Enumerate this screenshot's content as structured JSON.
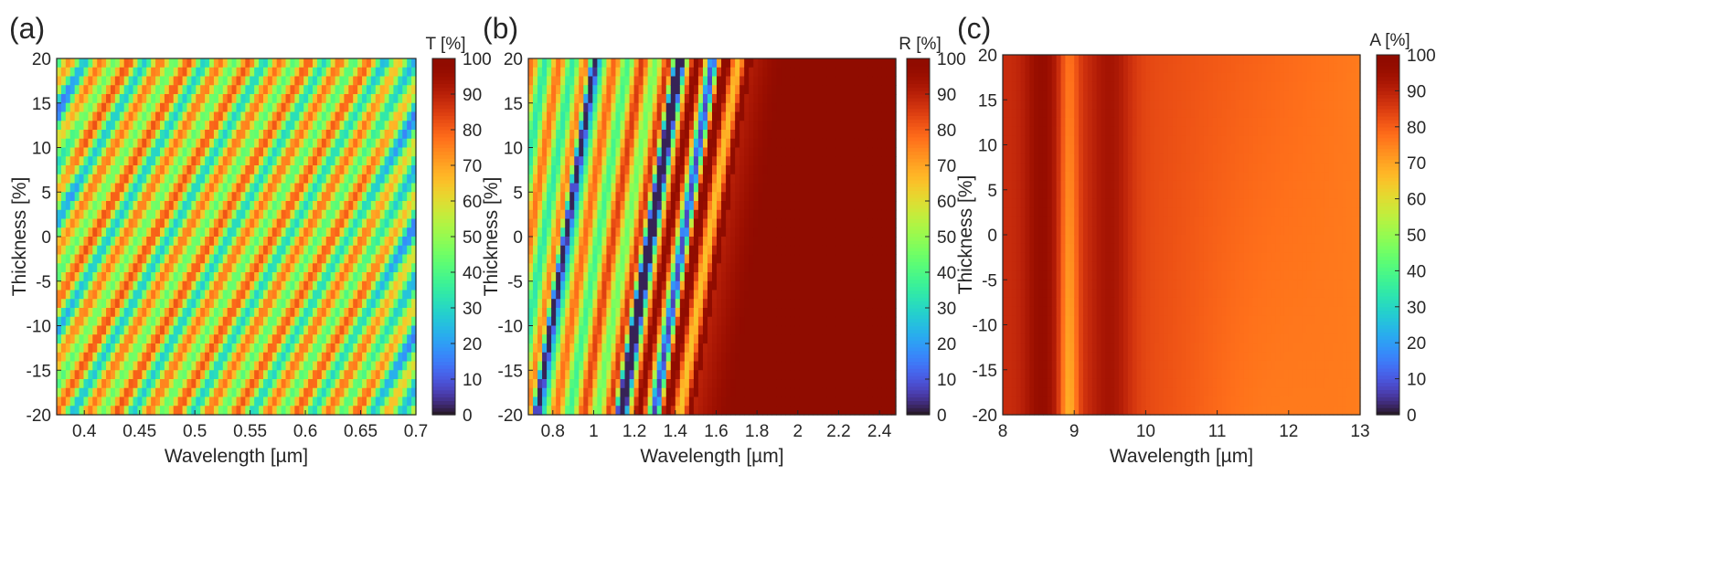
{
  "chart_data": [
    {
      "type": "heatmap",
      "panel_label": "(a)",
      "xlabel": "Wavelength [µm]",
      "ylabel": "Thickness [%]",
      "xlim": [
        0.375,
        0.7
      ],
      "ylim": [
        -20,
        20
      ],
      "xticks": [
        0.4,
        0.45,
        0.5,
        0.55,
        0.6,
        0.65,
        0.7
      ],
      "yticks": [
        -20,
        -15,
        -10,
        -5,
        0,
        5,
        10,
        15,
        20
      ],
      "colorbar": {
        "label": "T [%]",
        "range": [
          0,
          100
        ],
        "ticks": [
          0,
          10,
          20,
          30,
          40,
          50,
          60,
          70,
          80,
          90,
          100
        ]
      },
      "colormap": "turbo",
      "pattern": "diagonal_fringes",
      "description_values": {
        "typical_range": [
          25,
          85
        ]
      }
    },
    {
      "type": "heatmap",
      "panel_label": "(b)",
      "xlabel": "Wavelength [µm]",
      "ylabel": "Thickness [%]",
      "xlim": [
        0.68,
        2.48
      ],
      "ylim": [
        -20,
        20
      ],
      "xticks": [
        0.8,
        1,
        1.2,
        1.4,
        1.6,
        1.8,
        2,
        2.2,
        2.4
      ],
      "yticks": [
        -20,
        -15,
        -10,
        -5,
        0,
        5,
        10,
        15,
        20
      ],
      "colorbar": {
        "label": "R [%]",
        "range": [
          0,
          100
        ],
        "ticks": [
          0,
          10,
          20,
          30,
          40,
          50,
          60,
          70,
          80,
          90,
          100
        ]
      },
      "colormap": "turbo",
      "pattern": "slanted_fringes_rising_to_high_reflectance",
      "description_values": {
        "typical_range": [
          5,
          100
        ]
      }
    },
    {
      "type": "heatmap",
      "panel_label": "(c)",
      "xlabel": "Wavelength [µm]",
      "ylabel": "Thickness [%]",
      "xlim": [
        8,
        13
      ],
      "ylim": [
        -20,
        20
      ],
      "xticks": [
        8,
        9,
        10,
        11,
        12,
        13
      ],
      "yticks": [
        -20,
        -15,
        -10,
        -5,
        0,
        5,
        10,
        15,
        20
      ],
      "colorbar": {
        "label": "A [%]",
        "range": [
          0,
          100
        ],
        "ticks": [
          0,
          10,
          20,
          30,
          40,
          50,
          60,
          70,
          80,
          90,
          100
        ]
      },
      "colormap": "turbo",
      "pattern": "vertical_bands",
      "description_values": {
        "typical_range": [
          70,
          98
        ]
      }
    }
  ]
}
